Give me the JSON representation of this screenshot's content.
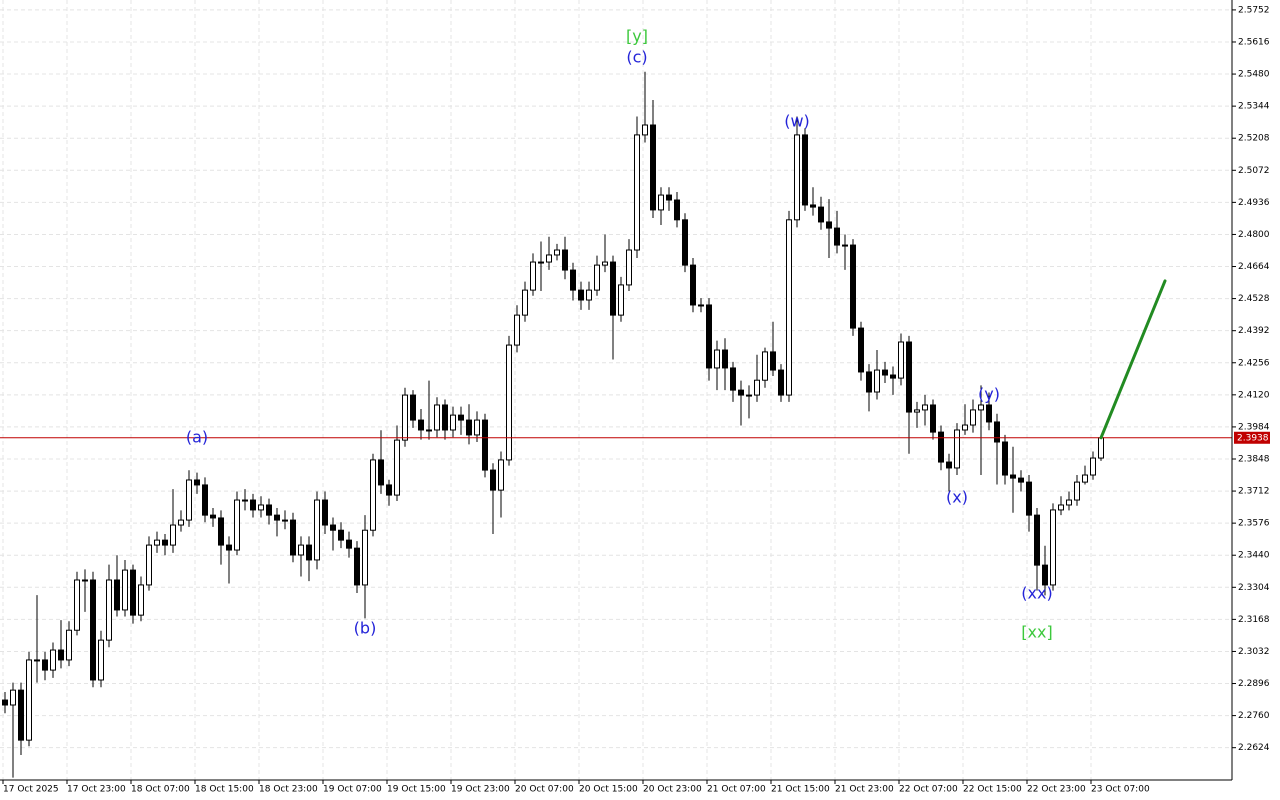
{
  "chart_data": {
    "type": "candlestick",
    "categories": [
      "17 Oct 2025",
      null,
      null,
      null,
      null,
      null,
      null,
      null,
      "17 Oct 23:00",
      null,
      null,
      null,
      null,
      null,
      null,
      null,
      "18 Oct 07:00",
      null,
      null,
      null,
      null,
      null,
      null,
      null,
      "18 Oct 15:00",
      null,
      null,
      null,
      null,
      null,
      null,
      null,
      "18 Oct 23:00",
      null,
      null,
      null,
      null,
      null,
      null,
      null,
      "19 Oct 07:00",
      null,
      null,
      null,
      null,
      null,
      null,
      null,
      "19 Oct 15:00",
      null,
      null,
      null,
      null,
      null,
      null,
      null,
      "19 Oct 23:00",
      null,
      null,
      null,
      null,
      null,
      null,
      null,
      "20 Oct 07:00",
      null,
      null,
      null,
      null,
      null,
      null,
      null,
      "20 Oct 15:00",
      null,
      null,
      null,
      null,
      null,
      null,
      null,
      "20 Oct 23:00",
      null,
      null,
      null,
      null,
      null,
      null,
      null,
      "21 Oct 07:00",
      null,
      null,
      null,
      null,
      null,
      null,
      null,
      "21 Oct 15:00",
      null,
      null,
      null,
      null,
      null,
      null,
      null,
      "21 Oct 23:00",
      null,
      null,
      null,
      null,
      null,
      null,
      null,
      "22 Oct 07:00",
      null,
      null,
      null,
      null,
      null,
      null,
      null,
      "22 Oct 15:00",
      null,
      null,
      null,
      null,
      null,
      null,
      null,
      "22 Oct 23:00",
      null,
      null,
      null,
      null,
      null,
      null,
      null,
      "23 Oct 07:00",
      null
    ],
    "open": [
      2.2826,
      2.2805,
      2.2868,
      2.2656,
      2.2996,
      2.2996,
      2.2953,
      2.3038,
      2.2996,
      2.3122,
      2.3335,
      2.3335,
      2.2911,
      2.308,
      2.3335,
      2.3208,
      2.3377,
      2.3186,
      2.3314,
      2.3483,
      2.3504,
      2.3483,
      2.3568,
      2.3589,
      2.3759,
      2.3738,
      2.361,
      2.3598,
      2.3483,
      2.3462,
      2.3674,
      2.3674,
      2.3632,
      2.3653,
      2.361,
      2.3589,
      2.3589,
      2.3441,
      2.3483,
      2.342,
      2.3674,
      2.3568,
      2.3546,
      2.3504,
      2.347,
      2.3314,
      2.3546,
      2.3844,
      2.3738,
      2.3695,
      2.3928,
      2.4119,
      2.4013,
      2.3971,
      2.3971,
      2.4077,
      2.3971,
      2.4034,
      2.4013,
      2.395,
      2.4013,
      2.3801,
      2.3716,
      2.3844,
      2.4331,
      2.4458,
      2.4564,
      2.4683,
      2.4683,
      2.4713,
      2.4734,
      2.4649,
      2.4564,
      2.4522,
      2.4564,
      2.467,
      2.4683,
      2.4458,
      2.4586,
      2.4734,
      2.5222,
      2.5264,
      2.4904,
      2.4967,
      2.4946,
      2.4862,
      2.467,
      2.4501,
      2.4501,
      2.4234,
      2.431,
      2.4234,
      2.414,
      2.4119,
      2.4119,
      2.4182,
      2.4302,
      2.4225,
      2.4119,
      2.4862,
      2.5222,
      2.4925,
      2.4916,
      2.4853,
      2.4827,
      2.4755,
      2.4755,
      2.4403,
      2.4217,
      2.4132,
      2.4225,
      2.4204,
      2.4191,
      2.4344,
      2.4047,
      2.4056,
      2.4077,
      2.3962,
      2.3835,
      2.381,
      2.3971,
      2.3992,
      2.4056,
      2.4077,
      2.4005,
      2.392,
      2.378,
      2.3767,
      2.375,
      2.361,
      2.3398,
      2.3314,
      2.3632,
      2.3653,
      2.3674,
      2.375,
      2.378,
      2.3852
    ],
    "high": [
      2.286,
      2.29,
      2.29,
      2.303,
      2.3271,
      2.303,
      2.307,
      2.3165,
      2.316,
      2.337,
      2.338,
      2.337,
      2.312,
      2.34,
      2.344,
      2.342,
      2.34,
      2.335,
      2.352,
      2.354,
      2.353,
      2.372,
      2.363,
      2.38,
      2.379,
      2.377,
      2.364,
      2.363,
      2.352,
      2.371,
      2.372,
      2.37,
      2.369,
      2.368,
      2.364,
      2.363,
      2.362,
      2.352,
      2.352,
      2.371,
      2.371,
      2.36,
      2.358,
      2.354,
      2.35,
      2.361,
      2.387,
      2.397,
      2.376,
      2.399,
      2.415,
      2.414,
      2.406,
      2.418,
      2.411,
      2.41,
      2.407,
      2.407,
      2.408,
      2.405,
      2.404,
      2.383,
      2.388,
      2.437,
      2.45,
      2.46,
      2.472,
      2.477,
      2.479,
      2.476,
      2.479,
      2.468,
      2.46,
      2.46,
      2.471,
      2.48,
      2.471,
      2.462,
      2.478,
      2.53,
      2.549,
      2.537,
      2.5,
      2.5,
      2.498,
      2.489,
      2.47,
      2.453,
      2.453,
      2.435,
      2.436,
      2.426,
      2.418,
      2.416,
      2.429,
      2.432,
      2.443,
      2.425,
      2.49,
      2.53,
      2.525,
      2.5,
      2.496,
      2.495,
      2.49,
      2.48,
      2.478,
      2.443,
      2.425,
      2.431,
      2.426,
      2.424,
      2.438,
      2.437,
      2.409,
      2.412,
      2.41,
      2.399,
      2.387,
      2.4,
      2.408,
      2.41,
      2.416,
      2.413,
      2.404,
      2.395,
      2.39,
      2.38,
      2.378,
      2.364,
      2.348,
      2.366,
      2.369,
      2.371,
      2.378,
      2.382,
      2.388,
      2.395
    ],
    "low": [
      2.277,
      2.2497,
      2.2593,
      2.263,
      2.29,
      2.291,
      2.292,
      2.296,
      2.297,
      2.31,
      2.32,
      2.288,
      2.288,
      2.305,
      2.318,
      2.318,
      2.315,
      2.316,
      2.329,
      2.345,
      2.344,
      2.345,
      2.354,
      2.356,
      2.37,
      2.358,
      2.356,
      2.34,
      2.332,
      2.344,
      2.363,
      2.36,
      2.36,
      2.357,
      2.352,
      2.355,
      2.341,
      2.335,
      2.333,
      2.338,
      2.353,
      2.346,
      2.347,
      2.343,
      2.328,
      2.3172,
      2.352,
      2.37,
      2.365,
      2.367,
      2.39,
      2.398,
      2.393,
      2.393,
      2.394,
      2.393,
      2.394,
      2.395,
      2.391,
      2.392,
      2.377,
      2.353,
      2.36,
      2.382,
      2.43,
      2.443,
      2.454,
      2.456,
      2.465,
      2.469,
      2.461,
      2.452,
      2.448,
      2.448,
      2.454,
      2.464,
      2.427,
      2.443,
      2.456,
      2.47,
      2.519,
      2.487,
      2.484,
      2.49,
      2.483,
      2.464,
      2.447,
      2.447,
      2.418,
      2.414,
      2.414,
      2.409,
      2.399,
      2.402,
      2.409,
      2.415,
      2.42,
      2.409,
      2.409,
      2.483,
      2.49,
      2.488,
      2.482,
      2.47,
      2.472,
      2.465,
      2.437,
      2.418,
      2.405,
      2.41,
      2.417,
      2.412,
      2.416,
      2.387,
      2.398,
      2.399,
      2.393,
      2.38,
      2.371,
      2.378,
      2.395,
      2.396,
      2.378,
      2.397,
      2.374,
      2.374,
      2.362,
      2.371,
      2.354,
      2.329,
      2.327,
      2.329,
      2.361,
      2.363,
      2.365,
      2.374,
      2.376,
      2.384
    ],
    "close": [
      2.2805,
      2.2868,
      2.2656,
      2.2996,
      2.2996,
      2.2953,
      2.3038,
      2.2996,
      2.3122,
      2.3335,
      2.3335,
      2.2911,
      2.308,
      2.3335,
      2.3208,
      2.3377,
      2.3186,
      2.3314,
      2.3483,
      2.3504,
      2.3483,
      2.3568,
      2.3589,
      2.3759,
      2.3738,
      2.361,
      2.3598,
      2.3483,
      2.3462,
      2.3674,
      2.3674,
      2.3632,
      2.3653,
      2.361,
      2.3589,
      2.3589,
      2.3441,
      2.3483,
      2.342,
      2.3674,
      2.3568,
      2.3546,
      2.3504,
      2.347,
      2.3314,
      2.3546,
      2.3844,
      2.3738,
      2.3695,
      2.3928,
      2.4119,
      2.4013,
      2.3971,
      2.3971,
      2.4077,
      2.3971,
      2.4034,
      2.4013,
      2.395,
      2.4013,
      2.3801,
      2.3716,
      2.3844,
      2.4331,
      2.4458,
      2.4564,
      2.4683,
      2.4683,
      2.4713,
      2.4734,
      2.4649,
      2.4564,
      2.4522,
      2.4564,
      2.467,
      2.4683,
      2.4458,
      2.4586,
      2.4734,
      2.5222,
      2.5264,
      2.4904,
      2.4967,
      2.4946,
      2.4862,
      2.467,
      2.4501,
      2.4501,
      2.4234,
      2.431,
      2.4234,
      2.414,
      2.4119,
      2.4119,
      2.4182,
      2.4302,
      2.4225,
      2.4119,
      2.4862,
      2.5222,
      2.4925,
      2.4916,
      2.4853,
      2.4827,
      2.4755,
      2.4755,
      2.4403,
      2.4217,
      2.4132,
      2.4225,
      2.4204,
      2.4191,
      2.4344,
      2.4047,
      2.4056,
      2.4077,
      2.3962,
      2.3835,
      2.381,
      2.3971,
      2.3992,
      2.4056,
      2.4077,
      2.4005,
      2.392,
      2.378,
      2.3767,
      2.375,
      2.361,
      2.3398,
      2.3314,
      2.3632,
      2.3653,
      2.3674,
      2.375,
      2.378,
      2.3852,
      2.3938
    ],
    "up_color": "#ffffff",
    "down_color": "#000000",
    "wick_color": "#000000",
    "ylim": [
      2.2487,
      2.5794
    ],
    "yticks": [
      2.5752,
      2.5616,
      {
        "value": 2.548,
        "label": "2.5480"
      },
      2.5344,
      2.5208,
      2.5072,
      2.4936,
      {
        "value": 2.48,
        "label": "2.4800"
      },
      2.4664,
      2.4528,
      2.4392,
      2.4256,
      {
        "value": 2.412,
        "label": "2.4120"
      },
      2.3984,
      2.3848,
      2.3712,
      2.3576,
      {
        "value": 2.344,
        "label": "2.3440"
      },
      2.3304,
      2.3168,
      2.3032,
      2.2896,
      {
        "value": 2.276,
        "label": "2.2760"
      },
      2.2624
    ],
    "grid": true,
    "current_price": 2.3938,
    "current_price_color": "#c00000",
    "forecast": {
      "x": [
        137,
        145
      ],
      "values": [
        2.3938,
        2.4603
      ],
      "color": "#228b22"
    },
    "annotations": [
      {
        "text": "[y]",
        "x": 79,
        "value": 2.5637,
        "color": "#3cc83c"
      },
      {
        "text": "(c)",
        "x": 79,
        "value": 2.5548,
        "color": "#2424d8"
      },
      {
        "text": "(w)",
        "x": 99,
        "value": 2.5277,
        "color": "#2424d8"
      },
      {
        "text": "(a)",
        "x": 24,
        "value": 2.3937,
        "color": "#2424d8"
      },
      {
        "text": "(b)",
        "x": 45,
        "value": 2.3127,
        "color": "#2424d8"
      },
      {
        "text": "(x)",
        "x": 119,
        "value": 2.3683,
        "color": "#2424d8"
      },
      {
        "text": "(y)",
        "x": 123,
        "value": 2.4119,
        "color": "#2424d8"
      },
      {
        "text": "(xx)",
        "x": 129,
        "value": 2.3276,
        "color": "#2424d8"
      },
      {
        "text": "[xx]",
        "x": 129,
        "value": 2.311,
        "color": "#3cc83c"
      }
    ]
  }
}
